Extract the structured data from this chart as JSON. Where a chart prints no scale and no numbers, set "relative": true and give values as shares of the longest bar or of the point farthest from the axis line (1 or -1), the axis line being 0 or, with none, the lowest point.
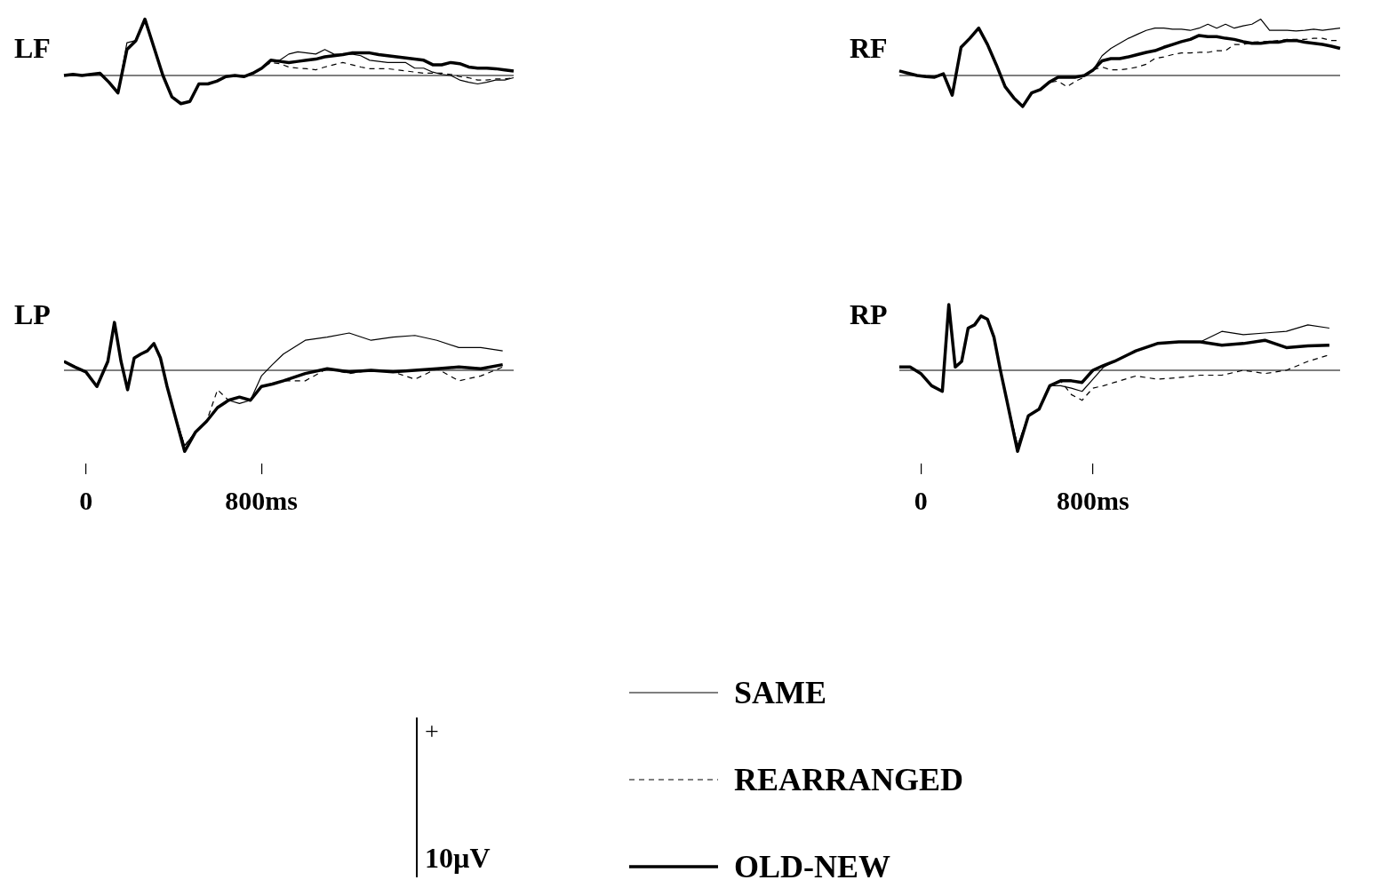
{
  "chart_data": [
    {
      "type": "line",
      "title": "LF",
      "relative": true,
      "categories": [
        null,
        null,
        null,
        null,
        null,
        null,
        null,
        null,
        null,
        null,
        null,
        null,
        null,
        null,
        null,
        null,
        null,
        null,
        null,
        null,
        null,
        null,
        null,
        null,
        null,
        null,
        null,
        null,
        null,
        null,
        null,
        null,
        null,
        null,
        null,
        null,
        null,
        null,
        null,
        null,
        null,
        null,
        null,
        null,
        null,
        null,
        null,
        null,
        null,
        null,
        null
      ],
      "series": [
        {
          "color": "#000000",
          "line_style": "solid",
          "values": [
            0,
            0.02,
            0,
            0.02,
            0.04,
            -0.12,
            -0.31,
            0.58,
            0.62,
            0.96,
            0.5,
            0,
            -0.38,
            -0.5,
            -0.46,
            -0.15,
            -0.15,
            -0.1,
            -0.02,
            0,
            -0.02,
            0.04,
            0.13,
            0.27,
            0.27,
            0.38,
            0.42,
            0.4,
            0.38,
            0.46,
            0.38,
            0.37,
            0.38,
            0.35,
            0.27,
            0.25,
            0.23,
            0.23,
            0.23,
            0.13,
            0.13,
            0.06,
            0.02,
            0,
            -0.08,
            -0.12,
            -0.15,
            -0.12,
            -0.08,
            -0.08,
            -0.04
          ]
        },
        {
          "color": "#000000",
          "line_style": "dashed",
          "values": [
            0,
            0.02,
            0,
            0.02,
            0.04,
            -0.12,
            -0.31,
            0.46,
            0.62,
            0.96,
            0.5,
            0,
            -0.38,
            -0.5,
            -0.46,
            -0.15,
            -0.15,
            -0.1,
            -0.02,
            0,
            -0.02,
            0.04,
            0.13,
            0.23,
            0.21,
            0.15,
            0.13,
            0.12,
            0.1,
            0.15,
            0.19,
            0.23,
            0.19,
            0.15,
            0.12,
            0.12,
            0.12,
            0.1,
            0.08,
            0.06,
            0.04,
            0.04,
            0.04,
            0.02,
            -0.02,
            -0.04,
            -0.08,
            -0.08,
            -0.06,
            -0.06,
            -0.04
          ]
        },
        {
          "color": "#000000",
          "line_style": "solid",
          "values": [
            0,
            0.02,
            0,
            0.02,
            0.04,
            -0.12,
            -0.31,
            0.46,
            0.62,
            1.0,
            0.5,
            0,
            -0.38,
            -0.5,
            -0.46,
            -0.15,
            -0.15,
            -0.1,
            -0.02,
            0,
            -0.02,
            0.04,
            0.13,
            0.27,
            0.25,
            0.23,
            0.25,
            0.27,
            0.29,
            0.33,
            0.35,
            0.37,
            0.4,
            0.4,
            0.4,
            0.37,
            0.35,
            0.33,
            0.31,
            0.29,
            0.27,
            0.19,
            0.19,
            0.23,
            0.21,
            0.15,
            0.13,
            0.13,
            0.12,
            0.1,
            0.08
          ]
        }
      ]
    },
    {
      "type": "line",
      "title": "RF",
      "relative": true,
      "categories": [
        null,
        null,
        null,
        null,
        null,
        null,
        null,
        null,
        null,
        null,
        null,
        null,
        null,
        null,
        null,
        null,
        null,
        null,
        null,
        null,
        null,
        null,
        null,
        null,
        null,
        null,
        null,
        null,
        null,
        null,
        null,
        null,
        null,
        null,
        null,
        null,
        null,
        null,
        null,
        null,
        null,
        null,
        null,
        null,
        null,
        null,
        null,
        null,
        null,
        null,
        null
      ],
      "series": [
        {
          "color": "#000000",
          "line_style": "solid",
          "values": [
            0.08,
            0.04,
            0,
            -0.02,
            -0.03,
            0.03,
            -0.35,
            0.5,
            0.66,
            0.84,
            0.55,
            0.19,
            -0.2,
            -0.4,
            -0.56,
            -0.31,
            -0.25,
            -0.12,
            -0.03,
            -0.03,
            -0.03,
            0,
            0.1,
            0.35,
            0.48,
            0.57,
            0.66,
            0.73,
            0.8,
            0.84,
            0.84,
            0.82,
            0.82,
            0.8,
            0.84,
            0.91,
            0.84,
            0.91,
            0.84,
            0.88,
            0.91,
            1.0,
            0.8,
            0.8,
            0.8,
            0.79,
            0.8,
            0.82,
            0.8,
            0.82,
            0.84
          ]
        },
        {
          "color": "#000000",
          "line_style": "dashed",
          "values": [
            0.08,
            0.04,
            0,
            -0.02,
            -0.03,
            0.03,
            -0.35,
            0.5,
            0.66,
            0.84,
            0.55,
            0.19,
            -0.2,
            -0.4,
            -0.55,
            -0.31,
            -0.25,
            -0.12,
            -0.1,
            -0.2,
            -0.1,
            -0.03,
            0.1,
            0.15,
            0.1,
            0.1,
            0.12,
            0.15,
            0.2,
            0.3,
            0.33,
            0.37,
            0.4,
            0.4,
            0.41,
            0.41,
            0.44,
            0.44,
            0.55,
            0.55,
            0.59,
            0.6,
            0.6,
            0.62,
            0.64,
            0.64,
            0.64,
            0.66,
            0.66,
            0.62,
            0.62
          ]
        },
        {
          "color": "#000000",
          "line_style": "solid",
          "values": [
            0.08,
            0.04,
            0,
            -0.02,
            -0.03,
            0.03,
            -0.35,
            0.5,
            0.66,
            0.84,
            0.55,
            0.19,
            -0.2,
            -0.4,
            -0.55,
            -0.31,
            -0.25,
            -0.12,
            -0.03,
            -0.03,
            -0.03,
            0,
            0.1,
            0.26,
            0.3,
            0.3,
            0.33,
            0.37,
            0.41,
            0.44,
            0.5,
            0.55,
            0.6,
            0.64,
            0.71,
            0.69,
            0.69,
            0.66,
            0.64,
            0.6,
            0.57,
            0.57,
            0.59,
            0.59,
            0.62,
            0.62,
            0.59,
            0.57,
            0.55,
            0.52,
            0.48
          ]
        }
      ]
    },
    {
      "type": "line",
      "title": "LP",
      "relative": true,
      "xlim": [
        -100,
        1950
      ],
      "xticks": [
        0,
        {
          "value": 800,
          "label": "800ms"
        }
      ],
      "x": [
        -100,
        -50,
        0,
        50,
        100,
        130,
        160,
        190,
        220,
        250,
        280,
        310,
        340,
        370,
        400,
        450,
        500,
        550,
        600,
        650,
        700,
        750,
        800,
        850,
        900,
        1000,
        1100,
        1200,
        1300,
        1400,
        1500,
        1600,
        1700,
        1800,
        1900
      ],
      "series": [
        {
          "color": "#000000",
          "line_style": "solid",
          "values": [
            0.11,
            0.04,
            -0.02,
            -0.2,
            0.11,
            0.59,
            0.11,
            -0.24,
            0.15,
            0.2,
            0.24,
            0.33,
            0.15,
            -0.2,
            -0.5,
            -0.93,
            -0.76,
            -0.63,
            -0.46,
            -0.37,
            -0.41,
            -0.37,
            -0.07,
            0.07,
            0.2,
            0.37,
            0.41,
            0.46,
            0.37,
            0.41,
            0.43,
            0.37,
            0.28,
            0.28,
            0.24
          ]
        },
        {
          "color": "#000000",
          "line_style": "dashed",
          "values": [
            0.11,
            0.04,
            -0.02,
            -0.2,
            0.11,
            0.59,
            0.11,
            -0.24,
            0.15,
            0.2,
            0.24,
            0.33,
            0.15,
            -0.2,
            -0.5,
            -0.93,
            -0.76,
            -0.63,
            -0.24,
            -0.37,
            -0.33,
            -0.37,
            -0.2,
            -0.17,
            -0.13,
            -0.13,
            0.02,
            -0.04,
            0,
            -0.02,
            -0.11,
            0.02,
            -0.13,
            -0.07,
            0.04
          ]
        },
        {
          "color": "#000000",
          "line_style": "solid",
          "values": [
            0.11,
            0.04,
            -0.02,
            -0.2,
            0.11,
            0.59,
            0.11,
            -0.24,
            0.15,
            0.2,
            0.24,
            0.33,
            0.15,
            -0.2,
            -0.5,
            -1,
            -0.76,
            -0.63,
            -0.46,
            -0.37,
            -0.33,
            -0.37,
            -0.2,
            -0.17,
            -0.13,
            -0.04,
            0.02,
            -0.02,
            0,
            -0.02,
            0,
            0.02,
            0.04,
            0.02,
            0.07
          ]
        }
      ]
    },
    {
      "type": "line",
      "title": "RP",
      "relative": true,
      "legend": "bottom",
      "annotations": [
        "+",
        "10µV"
      ],
      "xlim": [
        -100,
        1950
      ],
      "xticks": [
        0,
        {
          "value": 800,
          "label": "800ms"
        }
      ],
      "x": [
        -100,
        -50,
        0,
        50,
        100,
        130,
        160,
        190,
        220,
        250,
        280,
        310,
        340,
        370,
        400,
        450,
        500,
        550,
        600,
        650,
        700,
        750,
        800,
        850,
        900,
        1000,
        1100,
        1200,
        1300,
        1400,
        1500,
        1600,
        1700,
        1800,
        1900
      ],
      "series": [
        {
          "name": "SAME",
          "color": "#000000",
          "line_style": "solid",
          "values": [
            0.04,
            0.04,
            -0.04,
            -0.19,
            -0.26,
            0.81,
            0.04,
            0.11,
            0.52,
            0.56,
            0.67,
            0.63,
            0.41,
            0,
            -0.37,
            -0.93,
            -0.56,
            -0.48,
            -0.19,
            -0.19,
            -0.22,
            -0.26,
            -0.11,
            0.04,
            0.11,
            0.24,
            0.33,
            0.35,
            0.35,
            0.48,
            0.44,
            0.46,
            0.48,
            0.56,
            0.52
          ]
        },
        {
          "name": "REARRANGED",
          "color": "#000000",
          "line_style": "dashed",
          "values": [
            0.04,
            0.04,
            -0.04,
            -0.19,
            -0.26,
            0.81,
            0.04,
            0.11,
            0.52,
            0.56,
            0.67,
            0.63,
            0.41,
            0,
            -0.37,
            -0.93,
            -0.56,
            -0.48,
            -0.19,
            -0.13,
            -0.3,
            -0.37,
            -0.22,
            -0.19,
            -0.15,
            -0.07,
            -0.11,
            -0.09,
            -0.06,
            -0.06,
            0,
            -0.04,
            0,
            0.11,
            0.19
          ]
        },
        {
          "name": "OLD-NEW",
          "color": "#000000",
          "line_style": "solid",
          "values": [
            0.04,
            0.04,
            -0.04,
            -0.19,
            -0.26,
            0.81,
            0.04,
            0.11,
            0.52,
            0.56,
            0.67,
            0.63,
            0.41,
            0,
            -0.37,
            -1,
            -0.56,
            -0.48,
            -0.19,
            -0.13,
            -0.13,
            -0.15,
            0,
            0.06,
            0.11,
            0.24,
            0.33,
            0.35,
            0.35,
            0.31,
            0.33,
            0.37,
            0.28,
            0.3,
            0.31
          ]
        }
      ]
    }
  ]
}
